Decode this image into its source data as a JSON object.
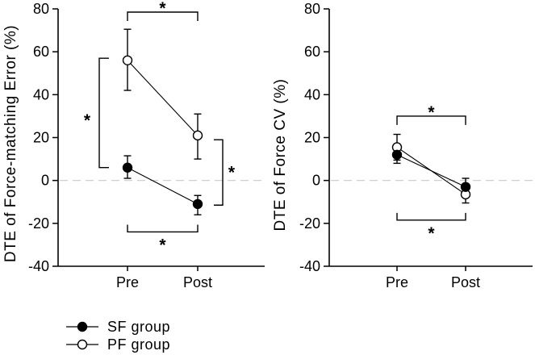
{
  "figure": {
    "background": "#ffffff",
    "axis_color": "#000000",
    "zero_line_color": "#c9c9c9",
    "sig_marker": "*"
  },
  "chart_data": [
    {
      "type": "line",
      "panel": "left",
      "ylabel": "DTE of Force-matching Error (%)",
      "xlabel": "",
      "categories": [
        "Pre",
        "Post"
      ],
      "ylim": [
        -40,
        80
      ],
      "yticks": [
        80,
        60,
        40,
        20,
        0,
        -20,
        -40
      ],
      "zero_line": true,
      "series": [
        {
          "name": "SF group",
          "marker": "filled",
          "values": [
            6,
            -11
          ],
          "err_lower": [
            5,
            5
          ],
          "err_upper": [
            5.5,
            4
          ]
        },
        {
          "name": "PF group",
          "marker": "open",
          "values": [
            56,
            21
          ],
          "err_lower": [
            14,
            11
          ],
          "err_upper": [
            14.5,
            10
          ]
        }
      ],
      "significance": [
        {
          "kind": "h",
          "from": 0,
          "to": 1,
          "y": 78.5,
          "legs": "down",
          "star": "above",
          "label": "*"
        },
        {
          "kind": "v",
          "anchor": 0,
          "offset": -35,
          "y1": 57,
          "y2": 6,
          "ticks": "right",
          "star": "left",
          "label": "*"
        },
        {
          "kind": "v",
          "anchor": 1,
          "offset": 31,
          "y1": 19,
          "y2": -11.5,
          "ticks": "left",
          "star": "right",
          "label": "*"
        },
        {
          "kind": "h",
          "from": 0,
          "to": 1,
          "y": -24,
          "legs": "up",
          "star": "below",
          "label": "*"
        }
      ]
    },
    {
      "type": "line",
      "panel": "right",
      "ylabel": "DTE of Force CV (%)",
      "xlabel": "",
      "categories": [
        "Pre",
        "Post"
      ],
      "ylim": [
        -40,
        80
      ],
      "yticks": [
        80,
        60,
        40,
        20,
        0,
        -20,
        -40
      ],
      "zero_line": true,
      "series": [
        {
          "name": "SF group",
          "marker": "filled",
          "values": [
            12,
            -3
          ],
          "err_lower": [
            4,
            4
          ],
          "err_upper": [
            4,
            4
          ]
        },
        {
          "name": "PF group",
          "marker": "open",
          "values": [
            15.5,
            -6.5
          ],
          "err_lower": [
            6,
            4
          ],
          "err_upper": [
            6,
            4
          ]
        }
      ],
      "significance": [
        {
          "kind": "h",
          "from": 0,
          "to": 1,
          "y": 30,
          "legs": "down",
          "star": "above",
          "label": "*"
        },
        {
          "kind": "h",
          "from": 0,
          "to": 1,
          "y": -18.5,
          "legs": "up",
          "star": "below",
          "label": "*"
        }
      ]
    }
  ],
  "legend": {
    "items": [
      {
        "label": "SF group",
        "marker": "filled"
      },
      {
        "label": "PF group",
        "marker": "open"
      }
    ]
  }
}
